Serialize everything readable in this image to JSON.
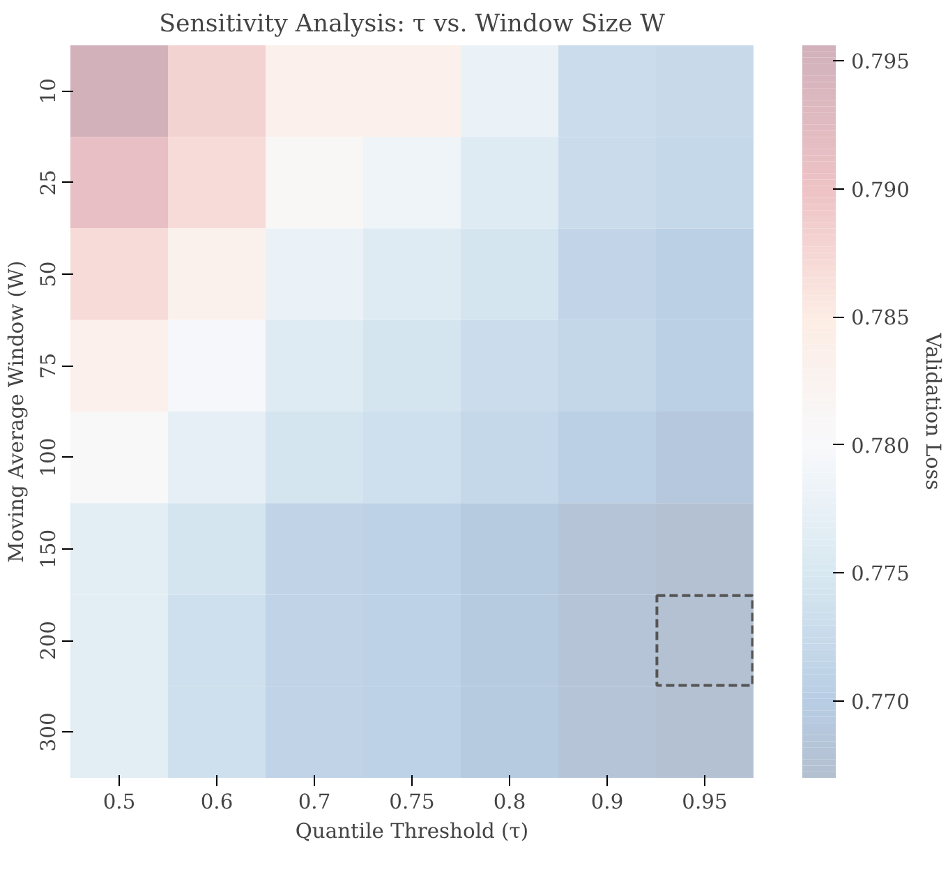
{
  "chart_data": {
    "type": "heatmap",
    "title": "Sensitivity Analysis: τ vs. Window Size W",
    "xlabel": "Quantile Threshold (τ)",
    "ylabel": "Moving Average Window (W)",
    "clabel": "Validation Loss",
    "categories": [
      "0.5",
      "0.6",
      "0.7",
      "0.75",
      "0.8",
      "0.9",
      "0.95"
    ],
    "y_categories": [
      "10",
      "25",
      "50",
      "75",
      "100",
      "150",
      "200",
      "300"
    ],
    "cells": [
      [
        0.7955,
        0.788,
        0.7835,
        0.7835,
        0.778,
        0.773,
        0.7725
      ],
      [
        0.791,
        0.787,
        0.781,
        0.7785,
        0.776,
        0.7728,
        0.772
      ],
      [
        0.787,
        0.783,
        0.778,
        0.776,
        0.7745,
        0.7715,
        0.7705
      ],
      [
        0.7835,
        0.7795,
        0.776,
        0.7745,
        0.773,
        0.7718,
        0.7705
      ],
      [
        0.7805,
        0.777,
        0.7745,
        0.7735,
        0.772,
        0.7705,
        0.769
      ],
      [
        0.7765,
        0.7745,
        0.7712,
        0.771,
        0.7695,
        0.768,
        0.7675
      ],
      [
        0.7765,
        0.7735,
        0.7712,
        0.771,
        0.7695,
        0.768,
        0.7675
      ],
      [
        0.7765,
        0.7735,
        0.7712,
        0.771,
        0.7695,
        0.768,
        0.7675
      ]
    ],
    "clim": [
      0.767,
      0.7956
    ],
    "cticks": [
      {
        "value": 0.77,
        "label": "0.770"
      },
      {
        "value": 0.775,
        "label": "0.775"
      },
      {
        "value": 0.78,
        "label": "0.780"
      },
      {
        "value": 0.785,
        "label": "0.785"
      },
      {
        "value": 0.79,
        "label": "0.790"
      },
      {
        "value": 0.795,
        "label": "0.795"
      }
    ]
  }
}
